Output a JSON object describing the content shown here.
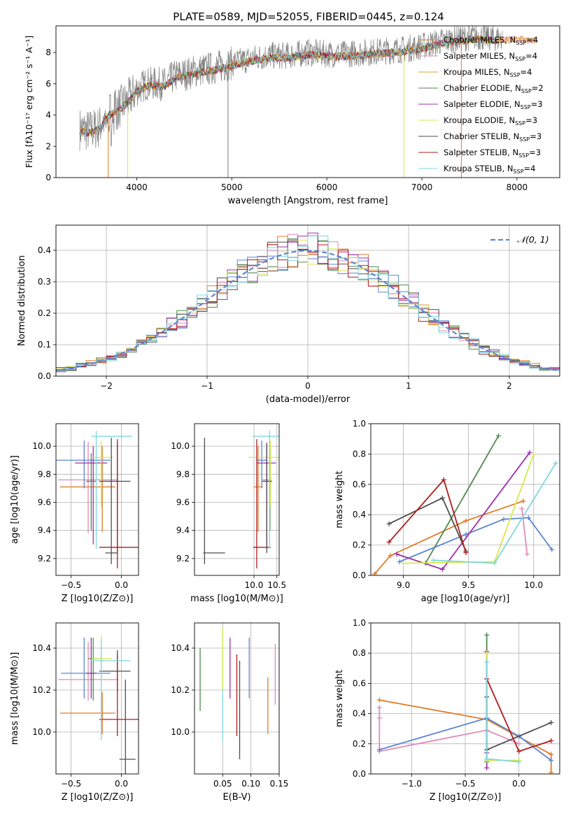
{
  "figure_title": "PLATE=0589, MJD=52055, FIBERID=0445, z=0.124",
  "colors": {
    "chabrier_miles": "#e07b27",
    "salpeter_miles": "#e08bb8",
    "kroupa_miles": "#e0a02a",
    "chabrier_elodie": "#4e8a4e",
    "salpeter_elodie": "#9b2fae",
    "kroupa_elodie": "#d9e84a",
    "chabrier_stelib": "#4d4d4d",
    "salpeter_stelib": "#b01c1c",
    "kroupa_stelib": "#7fd8e0",
    "blue_model": "#5b86d6",
    "data_spectrum": "#808080",
    "gauss": "#5b86d6"
  },
  "chart_data": [
    {
      "id": "spectrum",
      "type": "line",
      "title": "PLATE=0589, MJD=52055, FIBERID=0445, z=0.124",
      "xlabel": "wavelength [Angstrom, rest frame]",
      "ylabel": "Flux [f_λ 10^-17 erg cm^-2 s^-1 A^-1]",
      "xlim": [
        3150,
        8450
      ],
      "ylim": [
        0,
        9.7
      ],
      "xticks": [
        4000,
        5000,
        6000,
        7000,
        8000
      ],
      "yticks": [
        0,
        2,
        4,
        6,
        8
      ],
      "legend_position": "right",
      "continuum": [
        [
          3400,
          3.1
        ],
        [
          3500,
          3.0
        ],
        [
          3600,
          3.2
        ],
        [
          3700,
          4.1
        ],
        [
          3800,
          4.4
        ],
        [
          3900,
          4.9
        ],
        [
          4000,
          5.6
        ],
        [
          4100,
          6.0
        ],
        [
          4200,
          6.0
        ],
        [
          4300,
          6.0
        ],
        [
          4400,
          6.5
        ],
        [
          4500,
          6.6
        ],
        [
          4600,
          6.8
        ],
        [
          4800,
          7.0
        ],
        [
          5000,
          7.3
        ],
        [
          5200,
          7.6
        ],
        [
          5400,
          7.8
        ],
        [
          5600,
          7.8
        ],
        [
          5800,
          8.0
        ],
        [
          6000,
          7.9
        ],
        [
          6200,
          7.9
        ],
        [
          6400,
          8.0
        ],
        [
          6600,
          8.1
        ],
        [
          6800,
          8.2
        ],
        [
          7000,
          8.4
        ],
        [
          7200,
          8.7
        ],
        [
          7400,
          8.9
        ],
        [
          7600,
          9.0
        ],
        [
          7800,
          8.9
        ],
        [
          8000,
          9.0
        ],
        [
          8200,
          8.9
        ]
      ],
      "legend": [
        {
          "label": "Chabrier MILES, N",
          "sub": "SSP",
          "suffix": "=4",
          "color": "#e07b27"
        },
        {
          "label": "Salpeter MILES, N",
          "sub": "SSP",
          "suffix": "=4",
          "color": "#e08bb8"
        },
        {
          "label": "Kroupa MILES, N",
          "sub": "SSP",
          "suffix": "=4",
          "color": "#e0a02a"
        },
        {
          "label": "Chabrier ELODIE, N",
          "sub": "SSP",
          "suffix": "=2",
          "color": "#4e8a4e"
        },
        {
          "label": "Salpeter ELODIE, N",
          "sub": "SSP",
          "suffix": "=3",
          "color": "#9b2fae"
        },
        {
          "label": "Kroupa ELODIE, N",
          "sub": "SSP",
          "suffix": "=3",
          "color": "#d9e84a"
        },
        {
          "label": "Chabrier STELIB, N",
          "sub": "SSP",
          "suffix": "=3",
          "color": "#4d4d4d"
        },
        {
          "label": "Salpeter STELIB, N",
          "sub": "SSP",
          "suffix": "=3",
          "color": "#b01c1c"
        },
        {
          "label": "Kroupa STELIB, N",
          "sub": "SSP",
          "suffix": "=4",
          "color": "#7fd8e0"
        }
      ]
    },
    {
      "id": "residuals",
      "type": "line",
      "xlabel": "(data-model)/error",
      "ylabel": "Normed distribution",
      "xlim": [
        -2.5,
        2.5
      ],
      "ylim": [
        0,
        0.48
      ],
      "xticks": [
        -2,
        -1,
        0,
        1,
        2
      ],
      "yticks": [
        0.0,
        0.1,
        0.2,
        0.3,
        0.4
      ],
      "grid": true,
      "legend": "𝒩(0, 1)",
      "legend_position": "top-right",
      "bin_width": 0.1
    },
    {
      "id": "age_vs_Z",
      "type": "scatter",
      "xlabel": "Z [log10(Z/Z⊙)]",
      "ylabel": "age  [log10(age/yr)]",
      "xlim": [
        -0.65,
        0.17
      ],
      "ylim": [
        9.08,
        10.16
      ],
      "xticks": [
        -0.5,
        0.0
      ],
      "yticks": [
        9.2,
        9.4,
        9.6,
        9.8,
        10.0
      ],
      "grid": true,
      "errorbars": [
        {
          "x": -0.19,
          "xe": [
            0.42,
            0.13
          ],
          "y": 9.71,
          "ye": [
            0.32,
            0.29
          ],
          "color": "#e07b27"
        },
        {
          "x": -0.33,
          "xe": [
            0.3,
            0.3
          ],
          "y": 9.76,
          "ye": [
            0.38,
            0.27
          ],
          "color": "#e08bb8"
        },
        {
          "x": -0.37,
          "xe": [
            0.28,
            0.26
          ],
          "y": 9.9,
          "ye": [
            0.2,
            0.14
          ],
          "color": "#5b86d6"
        },
        {
          "x": -0.3,
          "xe": [
            0.05,
            0.05
          ],
          "y": 9.75,
          "ye": [
            0.35,
            0.2
          ],
          "color": "#4e8a4e"
        },
        {
          "x": -0.28,
          "xe": [
            0.18,
            0.14
          ],
          "y": 9.88,
          "ye": [
            0.58,
            0.12
          ],
          "color": "#9b2fae"
        },
        {
          "x": -0.2,
          "xe": [
            0.1,
            0.12
          ],
          "y": 9.92,
          "ye": [
            0.35,
            0.12
          ],
          "color": "#d9e84a"
        },
        {
          "x": -0.04,
          "xe": [
            0.18,
            0.13
          ],
          "y": 9.75,
          "ye": [
            0.51,
            0.27
          ],
          "color": "#4d4d4d"
        },
        {
          "x": -0.04,
          "xe": [
            0.18,
            0.26
          ],
          "y": 9.28,
          "ye": [
            0.15,
            0.77
          ],
          "color": "#b01c1c"
        },
        {
          "x": -0.25,
          "xe": [
            0.05,
            0.36
          ],
          "y": 10.07,
          "ye": [
            0.8,
            0.04
          ],
          "color": "#7fd8e0"
        },
        {
          "x": -0.1,
          "xe": [
            0.06,
            0.06
          ],
          "y": 9.24,
          "ye": [
            0.08,
            0.82
          ],
          "color": "#4d4d4d"
        }
      ]
    },
    {
      "id": "age_vs_mass",
      "type": "scatter",
      "xlabel": "mass [log10(M/M⊙)]",
      "ylabel": "",
      "xlim": [
        8.7,
        10.55
      ],
      "ylim": [
        9.08,
        10.16
      ],
      "xticks": [
        10.0,
        10.5
      ],
      "yticks": [
        9.2,
        9.4,
        9.6,
        9.8,
        10.0
      ],
      "grid": true,
      "errorbars": [
        {
          "x": 10.09,
          "xe": [
            0.1,
            0.1
          ],
          "y": 9.71,
          "ye": [
            0.32,
            0.29
          ],
          "color": "#e07b27"
        },
        {
          "x": 10.28,
          "xe": [
            0.1,
            0.1
          ],
          "y": 9.76,
          "ye": [
            0.38,
            0.27
          ],
          "color": "#e08bb8"
        },
        {
          "x": 10.17,
          "xe": [
            0.1,
            0.1
          ],
          "y": 9.9,
          "ye": [
            0.2,
            0.14
          ],
          "color": "#5b86d6"
        },
        {
          "x": 10.35,
          "xe": [
            0.05,
            0.05
          ],
          "y": 9.75,
          "ye": [
            0.35,
            0.2
          ],
          "color": "#4e8a4e"
        },
        {
          "x": 10.28,
          "xe": [
            0.22,
            0.2
          ],
          "y": 9.88,
          "ye": [
            0.58,
            0.12
          ],
          "color": "#9b2fae"
        },
        {
          "x": 10.36,
          "xe": [
            0.48,
            0.2
          ],
          "y": 9.92,
          "ye": [
            0.35,
            0.12
          ],
          "color": "#d9e84a"
        },
        {
          "x": 10.28,
          "xe": [
            0.1,
            0.1
          ],
          "y": 9.75,
          "ye": [
            0.51,
            0.27
          ],
          "color": "#4d4d4d"
        },
        {
          "x": 10.06,
          "xe": [
            0.08,
            0.3
          ],
          "y": 9.28,
          "ye": [
            0.15,
            0.77
          ],
          "color": "#b01c1c"
        },
        {
          "x": 10.34,
          "xe": [
            0.37,
            0.25
          ],
          "y": 10.07,
          "ye": [
            0.8,
            0.04
          ],
          "color": "#7fd8e0"
        },
        {
          "x": 8.92,
          "xe": [
            0.03,
            0.45
          ],
          "y": 9.24,
          "ye": [
            0.08,
            0.82
          ],
          "color": "#4d4d4d"
        }
      ]
    },
    {
      "id": "weight_vs_age",
      "type": "line",
      "xlabel": "age  [log10(age/yr)]",
      "ylabel": "mass weight",
      "xlim": [
        8.75,
        10.2
      ],
      "ylim": [
        0,
        1.0
      ],
      "xticks": [
        9.0,
        9.5,
        10.0
      ],
      "yticks": [
        0.0,
        0.2,
        0.4,
        0.6,
        0.8,
        1.0
      ],
      "grid": true,
      "series": [
        {
          "color": "#e07b27",
          "x": [
            8.78,
            8.9,
            9.48,
            9.92
          ],
          "y": [
            0.01,
            0.13,
            0.36,
            0.49
          ]
        },
        {
          "color": "#e08bb8",
          "x": [
            9.91,
            9.95
          ],
          "y": [
            0.44,
            0.14
          ]
        },
        {
          "color": "#5b86d6",
          "x": [
            8.97,
            9.48,
            9.77,
            9.96,
            10.14
          ],
          "y": [
            0.09,
            0.27,
            0.37,
            0.38,
            0.17
          ]
        },
        {
          "color": "#4e8a4e",
          "x": [
            9.17,
            9.73
          ],
          "y": [
            0.08,
            0.92
          ]
        },
        {
          "color": "#9b2fae",
          "x": [
            8.95,
            9.3,
            9.97
          ],
          "y": [
            0.14,
            0.04,
            0.81
          ]
        },
        {
          "color": "#d9e84a",
          "x": [
            9.0,
            9.7,
            10.0
          ],
          "y": [
            0.08,
            0.09,
            0.8
          ]
        },
        {
          "color": "#4d4d4d",
          "x": [
            8.89,
            9.3,
            9.48
          ],
          "y": [
            0.34,
            0.51,
            0.16
          ]
        },
        {
          "color": "#b01c1c",
          "x": [
            8.89,
            9.31,
            9.48
          ],
          "y": [
            0.22,
            0.63,
            0.15
          ]
        },
        {
          "color": "#7fd8e0",
          "x": [
            9.23,
            9.7,
            10.17
          ],
          "y": [
            0.1,
            0.08,
            0.74
          ]
        }
      ]
    },
    {
      "id": "mass_vs_Z",
      "type": "scatter",
      "xlabel": "Z [log10(Z/Z⊙)]",
      "ylabel": "mass [log10(M/M⊙)]",
      "xlim": [
        -0.65,
        0.17
      ],
      "ylim": [
        9.8,
        10.52
      ],
      "xticks": [
        -0.5,
        0.0
      ],
      "yticks": [
        10.0,
        10.2,
        10.4
      ],
      "grid": true,
      "errorbars": [
        {
          "x": -0.19,
          "xe": [
            0.42,
            0.13
          ],
          "y": 10.09,
          "ye": [
            0.1,
            0.1
          ],
          "color": "#e07b27"
        },
        {
          "x": -0.33,
          "xe": [
            0.3,
            0.3
          ],
          "y": 10.25,
          "ye": [
            0.1,
            0.18
          ],
          "color": "#e08bb8"
        },
        {
          "x": -0.37,
          "xe": [
            0.23,
            0.26
          ],
          "y": 10.28,
          "ye": [
            0.12,
            0.17
          ],
          "color": "#5b86d6"
        },
        {
          "x": -0.28,
          "xe": [
            0.05,
            0.05
          ],
          "y": 10.35,
          "ye": [
            0.2,
            0.1
          ],
          "color": "#4e8a4e"
        },
        {
          "x": -0.3,
          "xe": [
            0.05,
            0.05
          ],
          "y": 10.28,
          "ye": [
            0.12,
            0.17
          ],
          "color": "#9b2fae"
        },
        {
          "x": -0.2,
          "xe": [
            0.1,
            0.1
          ],
          "y": 10.35,
          "ye": [
            0.15,
            0.11
          ],
          "color": "#d9e84a"
        },
        {
          "x": -0.04,
          "xe": [
            0.18,
            0.13
          ],
          "y": 10.29,
          "ye": [
            0.1,
            0.1
          ],
          "color": "#4d4d4d"
        },
        {
          "x": -0.04,
          "xe": [
            0.18,
            0.26
          ],
          "y": 10.06,
          "ye": [
            0.08,
            0.31
          ],
          "color": "#b01c1c"
        },
        {
          "x": -0.2,
          "xe": [
            0.1,
            0.29
          ],
          "y": 10.34,
          "ye": [
            0.38,
            0.1
          ],
          "color": "#7fd8e0"
        },
        {
          "x": 0.04,
          "xe": [
            0.06,
            0.1
          ],
          "y": 9.87,
          "ye": [
            0.07,
            0.38
          ],
          "color": "#4d4d4d"
        }
      ]
    },
    {
      "id": "mass_vs_EBV",
      "type": "scatter",
      "xlabel": "E(B-V)",
      "ylabel": "",
      "xlim": [
        0.0,
        0.15
      ],
      "ylim": [
        9.8,
        10.52
      ],
      "xticks": [
        0.05,
        0.1,
        0.15
      ],
      "yticks": [
        10.0,
        10.2,
        10.4
      ],
      "grid": true,
      "errorbars": [
        {
          "x": 0.01,
          "y": 10.25,
          "ye": [
            0.15,
            0.15
          ],
          "color": "#4e8a4e"
        },
        {
          "x": 0.05,
          "y": 10.34,
          "ye": [
            0.38,
            0.16
          ],
          "color": "#7fd8e0"
        },
        {
          "x": 0.05,
          "y": 10.35,
          "ye": [
            0.15,
            0.15
          ],
          "color": "#d9e84a"
        },
        {
          "x": 0.063,
          "y": 10.28,
          "ye": [
            0.12,
            0.17
          ],
          "color": "#9b2fae"
        },
        {
          "x": 0.075,
          "y": 10.06,
          "ye": [
            0.08,
            0.31
          ],
          "color": "#b01c1c"
        },
        {
          "x": 0.08,
          "y": 10.1,
          "ye": [
            0.23,
            0.24
          ],
          "color": "#4d4d4d"
        },
        {
          "x": 0.097,
          "y": 10.28,
          "ye": [
            0.12,
            0.17
          ],
          "color": "#5b86d6"
        },
        {
          "x": 0.13,
          "y": 10.09,
          "ye": [
            0.1,
            0.17
          ],
          "color": "#e07b27"
        },
        {
          "x": 0.143,
          "y": 10.25,
          "ye": [
            0.12,
            0.17
          ],
          "color": "#e08bb8"
        }
      ]
    },
    {
      "id": "weight_vs_Z",
      "type": "line",
      "xlabel": "Z [log10(Z/Z⊙)]",
      "ylabel": "mass weight",
      "xlim": [
        -1.38,
        0.38
      ],
      "ylim": [
        0,
        1.0
      ],
      "xticks": [
        -1.0,
        -0.5,
        0.0
      ],
      "yticks": [
        0.0,
        0.2,
        0.4,
        0.6,
        0.8,
        1.0
      ],
      "grid": true,
      "series": [
        {
          "color": "#e07b27",
          "x": [
            -1.3,
            -0.3,
            0.3,
            0.3
          ],
          "y": [
            0.49,
            0.36,
            0.13,
            0.01
          ]
        },
        {
          "color": "#e08bb8",
          "x": [
            -1.3,
            -1.3,
            -1.3,
            -0.3,
            0.0
          ],
          "y": [
            0.44,
            0.37,
            0.15,
            0.29,
            0.2
          ]
        },
        {
          "color": "#5b86d6",
          "x": [
            -1.3,
            -0.3,
            0.0,
            0.3
          ],
          "y": [
            0.16,
            0.37,
            0.25,
            0.09
          ]
        },
        {
          "color": "#4e8a4e",
          "x": [
            -0.3,
            -0.3
          ],
          "y": [
            0.08,
            0.92
          ]
        },
        {
          "color": "#9b2fae",
          "x": [
            -0.3,
            -0.3,
            -0.3
          ],
          "y": [
            0.04,
            0.81,
            0.14
          ]
        },
        {
          "color": "#d9e84a",
          "x": [
            -0.3,
            -0.3,
            0.0
          ],
          "y": [
            0.8,
            0.09,
            0.09
          ]
        },
        {
          "color": "#4d4d4d",
          "x": [
            -0.3,
            -0.3,
            0.3
          ],
          "y": [
            0.51,
            0.16,
            0.34
          ]
        },
        {
          "color": "#b01c1c",
          "x": [
            -0.3,
            0.0,
            0.3
          ],
          "y": [
            0.63,
            0.15,
            0.22
          ]
        },
        {
          "color": "#7fd8e0",
          "x": [
            -0.3,
            -0.3,
            0.0
          ],
          "y": [
            0.74,
            0.1,
            0.08
          ]
        }
      ]
    }
  ]
}
